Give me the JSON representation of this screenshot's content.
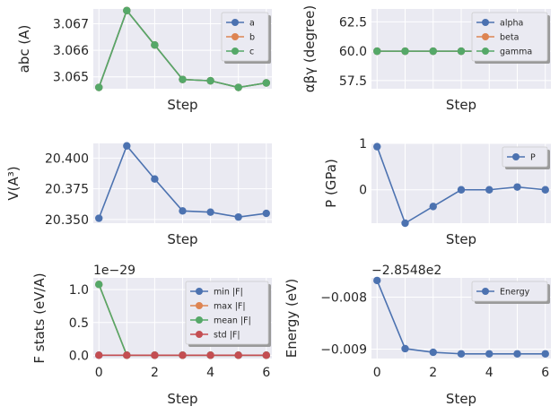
{
  "colors": {
    "axes_bg": "#EAEAF2",
    "grid": "#ffffff",
    "legend_bg": "#EAEAF2",
    "blue": "#4C72B0",
    "orange": "#DD8452",
    "green": "#55A868",
    "red": "#C44E52"
  },
  "chart_data": [
    {
      "type": "line",
      "xlabel": "Step",
      "ylabel": "abc (A)",
      "x": [
        0,
        1,
        2,
        3,
        4,
        5,
        6
      ],
      "xlim": [
        -0.2,
        6.2
      ],
      "ylim": [
        3.06455,
        3.06756
      ],
      "yticks": [
        3.065,
        3.066,
        3.067
      ],
      "ytick_labels": [
        "3.065",
        "3.066",
        "3.067"
      ],
      "show_xtick_labels": false,
      "legend": "top-right",
      "series": [
        {
          "name": "a",
          "color": "blue",
          "values": [
            3.0646,
            3.0675,
            3.0662,
            3.0649,
            3.06485,
            3.0646,
            3.06477
          ]
        },
        {
          "name": "b",
          "color": "orange",
          "values": [
            3.0646,
            3.0675,
            3.0662,
            3.0649,
            3.06485,
            3.0646,
            3.06477
          ]
        },
        {
          "name": "c",
          "color": "green",
          "values": [
            3.0646,
            3.0675,
            3.0662,
            3.0649,
            3.06485,
            3.0646,
            3.06477
          ]
        }
      ]
    },
    {
      "type": "line",
      "xlabel": "Step",
      "ylabel": "αβγ (degree)",
      "x": [
        0,
        1,
        2,
        3,
        4,
        5,
        6
      ],
      "xlim": [
        -0.2,
        6.2
      ],
      "ylim": [
        56.8,
        63.6
      ],
      "yticks": [
        57.5,
        60.0,
        62.5
      ],
      "ytick_labels": [
        "57.5",
        "60.0",
        "62.5"
      ],
      "show_xtick_labels": false,
      "legend": "top-right",
      "series": [
        {
          "name": "alpha",
          "color": "blue",
          "values": [
            60,
            60,
            60,
            60,
            60,
            60,
            60
          ]
        },
        {
          "name": "beta",
          "color": "orange",
          "values": [
            60,
            60,
            60,
            60,
            60,
            60,
            60
          ]
        },
        {
          "name": "gamma",
          "color": "green",
          "values": [
            60,
            60,
            60,
            60,
            60,
            60,
            60
          ]
        }
      ]
    },
    {
      "type": "line",
      "xlabel": "Step",
      "ylabel": "V(A³)",
      "x": [
        0,
        1,
        2,
        3,
        4,
        5,
        6
      ],
      "xlim": [
        -0.2,
        6.2
      ],
      "ylim": [
        20.347,
        20.412
      ],
      "yticks": [
        20.35,
        20.375,
        20.4
      ],
      "ytick_labels": [
        "20.350",
        "20.375",
        "20.400"
      ],
      "show_xtick_labels": false,
      "legend": "none",
      "series": [
        {
          "name": "",
          "color": "blue",
          "values": [
            20.351,
            20.41,
            20.383,
            20.357,
            20.356,
            20.352,
            20.355
          ]
        }
      ]
    },
    {
      "type": "line",
      "xlabel": "Step",
      "ylabel": "P (GPa)",
      "x": [
        0,
        1,
        2,
        3,
        4,
        5,
        6
      ],
      "xlim": [
        -0.2,
        6.2
      ],
      "ylim": [
        -0.72,
        1.0
      ],
      "yticks": [
        0,
        1
      ],
      "ytick_labels": [
        "0",
        "1"
      ],
      "show_xtick_labels": false,
      "legend": "top-right",
      "series": [
        {
          "name": "P",
          "color": "blue",
          "values": [
            0.93,
            -0.72,
            -0.36,
            0.0,
            0.0,
            0.06,
            0.0
          ]
        }
      ]
    },
    {
      "type": "line",
      "xlabel": "Step",
      "ylabel": "F stats (eV/A)",
      "offset_text": "1e−29",
      "x": [
        0,
        1,
        2,
        3,
        4,
        5,
        6
      ],
      "xlim": [
        -0.2,
        6.2
      ],
      "ylim": [
        -0.05,
        1.18
      ],
      "yticks": [
        0.0,
        0.5,
        1.0
      ],
      "ytick_labels": [
        "0.0",
        "0.5",
        "1.0"
      ],
      "xticks": [
        0,
        2,
        4,
        6
      ],
      "xtick_labels": [
        "0",
        "2",
        "4",
        "6"
      ],
      "show_xtick_labels": true,
      "legend": "top-right",
      "series": [
        {
          "name": "min |F|",
          "color": "blue",
          "values": [
            0,
            0,
            0,
            0,
            0,
            0,
            0
          ]
        },
        {
          "name": "max |F|",
          "color": "orange",
          "values": [
            1.08,
            0,
            0,
            0,
            0,
            0,
            0
          ]
        },
        {
          "name": "mean |F|",
          "color": "green",
          "values": [
            1.08,
            0,
            0,
            0,
            0,
            0,
            0
          ]
        },
        {
          "name": "std |F|",
          "color": "red",
          "values": [
            0,
            0,
            0,
            0,
            0,
            0,
            0
          ]
        }
      ]
    },
    {
      "type": "line",
      "xlabel": "Step",
      "ylabel": "Energy (eV)",
      "offset_text": "−2.8548e2",
      "x": [
        0,
        1,
        2,
        3,
        4,
        5,
        6
      ],
      "xlim": [
        -0.2,
        6.2
      ],
      "ylim": [
        -0.00918,
        -0.00763
      ],
      "yticks": [
        -0.008,
        -0.009
      ],
      "ytick_labels": [
        "−0.008",
        "−0.009"
      ],
      "xticks": [
        0,
        2,
        4,
        6
      ],
      "xtick_labels": [
        "0",
        "2",
        "4",
        "6"
      ],
      "show_xtick_labels": true,
      "legend": "top-right",
      "series": [
        {
          "name": "Energy",
          "color": "blue",
          "values": [
            -0.00768,
            -0.00899,
            -0.00906,
            -0.00909,
            -0.00909,
            -0.00909,
            -0.00909
          ]
        }
      ]
    }
  ]
}
